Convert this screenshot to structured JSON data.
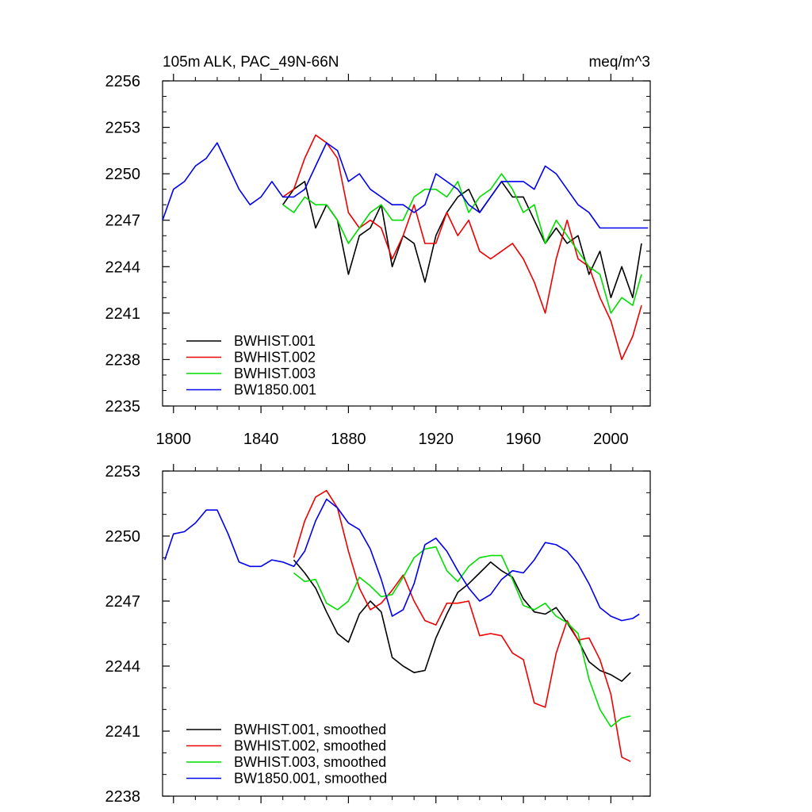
{
  "chart_data": [
    {
      "type": "line",
      "title_left": "105m ALK, PAC_49N-66N",
      "title_right": "meq/m^3",
      "xlim": [
        1795,
        2018
      ],
      "ylim": [
        2235,
        2256
      ],
      "x_ticks": [
        1800,
        1840,
        1880,
        1920,
        1960,
        2000
      ],
      "x_tick_labels": [
        "1800",
        "1840",
        "1880",
        "1920",
        "1960",
        "2000"
      ],
      "y_ticks": [
        2235,
        2238,
        2241,
        2244,
        2247,
        2250,
        2253,
        2256
      ],
      "y_tick_labels": [
        "2235",
        "2238",
        "2241",
        "2244",
        "2247",
        "2250",
        "2253",
        "2256"
      ],
      "legend_position": "bottom-left",
      "series": [
        {
          "name": "BWHIST.001",
          "color": "#000000",
          "x": [
            1850,
            1855,
            1860,
            1865,
            1870,
            1875,
            1880,
            1885,
            1890,
            1895,
            1900,
            1905,
            1910,
            1915,
            1920,
            1925,
            1930,
            1935,
            1940,
            1945,
            1950,
            1955,
            1960,
            1965,
            1970,
            1975,
            1980,
            1985,
            1990,
            1995,
            2000,
            2005,
            2010,
            2014
          ],
          "y": [
            2248,
            2249,
            2249.5,
            2246.5,
            2248,
            2247,
            2243.5,
            2246,
            2246.5,
            2248,
            2244,
            2246,
            2245.5,
            2243,
            2246,
            2247.5,
            2248.5,
            2249,
            2247.5,
            2248.5,
            2249.5,
            2248.5,
            2248.5,
            2247,
            2245.5,
            2246.5,
            2245.5,
            2246,
            2243.5,
            2245,
            2242,
            2244,
            2242,
            2245.5
          ]
        },
        {
          "name": "BWHIST.002",
          "color": "#ee0000",
          "x": [
            1850,
            1855,
            1860,
            1865,
            1870,
            1875,
            1880,
            1885,
            1890,
            1895,
            1900,
            1905,
            1910,
            1915,
            1920,
            1925,
            1930,
            1935,
            1940,
            1945,
            1950,
            1955,
            1960,
            1965,
            1970,
            1975,
            1980,
            1985,
            1990,
            1995,
            2000,
            2005,
            2010,
            2014
          ],
          "y": [
            2248.5,
            2249,
            2251,
            2252.5,
            2252,
            2251,
            2247.5,
            2246.5,
            2247,
            2246.5,
            2244.5,
            2246,
            2248,
            2245.5,
            2245.5,
            2247.5,
            2246,
            2247,
            2245,
            2244.5,
            2245,
            2245.5,
            2244.5,
            2243,
            2241,
            2244.5,
            2247,
            2244.5,
            2244,
            2242,
            2240.5,
            2238,
            2239.5,
            2241.5
          ]
        },
        {
          "name": "BWHIST.003",
          "color": "#00dd00",
          "x": [
            1850,
            1855,
            1860,
            1865,
            1870,
            1875,
            1880,
            1885,
            1890,
            1895,
            1900,
            1905,
            1910,
            1915,
            1920,
            1925,
            1930,
            1935,
            1940,
            1945,
            1950,
            1955,
            1960,
            1965,
            1970,
            1975,
            1980,
            1985,
            1990,
            1995,
            2000,
            2005,
            2010,
            2014
          ],
          "y": [
            2248,
            2247.5,
            2248.5,
            2248,
            2248,
            2247,
            2245.5,
            2246.5,
            2247.5,
            2248,
            2247,
            2247,
            2248.5,
            2249,
            2249,
            2248.5,
            2249.5,
            2247.5,
            2248.5,
            2249,
            2250,
            2249,
            2247.5,
            2248,
            2245.5,
            2247,
            2246,
            2245,
            2244,
            2243.5,
            2241,
            2242,
            2241.5,
            2243.5
          ]
        },
        {
          "name": "BW1850.001",
          "color": "#0000ee",
          "x": [
            1795,
            1800,
            1805,
            1810,
            1815,
            1820,
            1825,
            1830,
            1835,
            1840,
            1845,
            1850,
            1855,
            1860,
            1865,
            1870,
            1875,
            1880,
            1885,
            1890,
            1895,
            1900,
            1905,
            1910,
            1915,
            1920,
            1925,
            1930,
            1935,
            1940,
            1945,
            1950,
            1955,
            1960,
            1965,
            1970,
            1975,
            1980,
            1985,
            1990,
            1995,
            2000,
            2005,
            2010,
            2014,
            2017
          ],
          "y": [
            2247,
            2249,
            2249.5,
            2250.5,
            2251,
            2252,
            2250.5,
            2249,
            2248,
            2248.5,
            2249.5,
            2248.5,
            2248.5,
            2249,
            2250.5,
            2252,
            2251.5,
            2249.5,
            2250,
            2249,
            2248.5,
            2248,
            2248,
            2247.5,
            2248,
            2250,
            2249.5,
            2249,
            2248,
            2247.5,
            2248.5,
            2249.5,
            2249.5,
            2249.5,
            2249,
            2250.5,
            2250,
            2249,
            2248,
            2247.5,
            2246.5,
            2246.5,
            2246.5,
            2246.5,
            2246.5,
            2246.5
          ]
        }
      ]
    },
    {
      "type": "line",
      "xlim": [
        1795,
        2018
      ],
      "ylim": [
        2238,
        2253
      ],
      "x_ticks": [
        1800,
        1840,
        1880,
        1920,
        1960,
        2000
      ],
      "y_ticks": [
        2238,
        2241,
        2244,
        2247,
        2250,
        2253
      ],
      "y_tick_labels": [
        "2238",
        "2241",
        "2244",
        "2247",
        "2250",
        "2253"
      ],
      "legend_position": "bottom-left",
      "series": [
        {
          "name": "BWHIST.001, smoothed",
          "color": "#000000",
          "x": [
            1855,
            1860,
            1865,
            1870,
            1875,
            1880,
            1885,
            1890,
            1895,
            1900,
            1905,
            1910,
            1915,
            1920,
            1925,
            1930,
            1935,
            1940,
            1945,
            1950,
            1955,
            1960,
            1965,
            1970,
            1975,
            1980,
            1985,
            1990,
            1995,
            2000,
            2005,
            2009
          ],
          "y": [
            2248.9,
            2248.3,
            2247.6,
            2246.5,
            2245.5,
            2245.1,
            2246.4,
            2247.0,
            2246.5,
            2244.4,
            2244.0,
            2243.7,
            2243.8,
            2245.3,
            2246.4,
            2247.4,
            2247.8,
            2248.3,
            2248.8,
            2248.4,
            2248.1,
            2247.1,
            2246.5,
            2246.4,
            2246.7,
            2246.0,
            2245.2,
            2244.2,
            2243.8,
            2243.6,
            2243.3,
            2243.7
          ]
        },
        {
          "name": "BWHIST.002, smoothed",
          "color": "#ee0000",
          "x": [
            1855,
            1860,
            1865,
            1870,
            1875,
            1880,
            1885,
            1890,
            1895,
            1900,
            1905,
            1910,
            1915,
            1920,
            1925,
            1930,
            1935,
            1940,
            1945,
            1950,
            1955,
            1960,
            1965,
            1970,
            1975,
            1980,
            1985,
            1990,
            1995,
            2000,
            2005,
            2009
          ],
          "y": [
            2249.0,
            2250.7,
            2251.8,
            2252.1,
            2251.3,
            2249.3,
            2247.6,
            2246.6,
            2246.9,
            2247.5,
            2248.2,
            2247.0,
            2246.1,
            2245.9,
            2246.9,
            2246.9,
            2247.0,
            2245.4,
            2245.5,
            2245.4,
            2244.6,
            2244.3,
            2242.3,
            2242.1,
            2244.6,
            2246.1,
            2245.2,
            2245.3,
            2244.3,
            2242.7,
            2239.8,
            2239.6
          ]
        },
        {
          "name": "BWHIST.003, smoothed",
          "color": "#00dd00",
          "x": [
            1855,
            1860,
            1865,
            1870,
            1875,
            1880,
            1885,
            1890,
            1895,
            1900,
            1905,
            1910,
            1915,
            1920,
            1925,
            1930,
            1935,
            1940,
            1945,
            1950,
            1955,
            1960,
            1965,
            1970,
            1975,
            1980,
            1985,
            1990,
            1995,
            2000,
            2005,
            2009
          ],
          "y": [
            2248.3,
            2247.9,
            2248.0,
            2246.9,
            2246.6,
            2247.0,
            2248.1,
            2247.7,
            2247.2,
            2247.3,
            2248.1,
            2249.0,
            2249.4,
            2249.5,
            2248.4,
            2247.9,
            2248.6,
            2249.0,
            2249.1,
            2249.1,
            2248.0,
            2246.8,
            2246.6,
            2246.9,
            2246.3,
            2246.0,
            2245.5,
            2243.4,
            2242.0,
            2241.2,
            2241.6,
            2241.7
          ]
        },
        {
          "name": "BW1850.001, smoothed",
          "color": "#0000ee",
          "x": [
            1796,
            1800,
            1805,
            1810,
            1815,
            1820,
            1825,
            1830,
            1835,
            1840,
            1845,
            1850,
            1855,
            1860,
            1865,
            1870,
            1875,
            1880,
            1885,
            1890,
            1895,
            1900,
            1905,
            1910,
            1915,
            1920,
            1925,
            1930,
            1935,
            1940,
            1945,
            1950,
            1955,
            1960,
            1965,
            1970,
            1975,
            1980,
            1985,
            1990,
            1995,
            2000,
            2005,
            2010,
            2013
          ],
          "y": [
            2248.9,
            2250.1,
            2250.2,
            2250.6,
            2251.2,
            2251.2,
            2250.1,
            2248.8,
            2248.6,
            2248.6,
            2248.9,
            2248.8,
            2248.6,
            2249.3,
            2250.7,
            2251.7,
            2251.3,
            2250.6,
            2250.3,
            2249.4,
            2248.0,
            2246.3,
            2246.6,
            2247.8,
            2249.6,
            2249.9,
            2249.3,
            2248.4,
            2247.6,
            2247.0,
            2247.3,
            2248.0,
            2248.4,
            2248.3,
            2248.9,
            2249.7,
            2249.6,
            2249.3,
            2248.7,
            2247.8,
            2246.7,
            2246.3,
            2246.1,
            2246.2,
            2246.4
          ]
        }
      ]
    }
  ]
}
